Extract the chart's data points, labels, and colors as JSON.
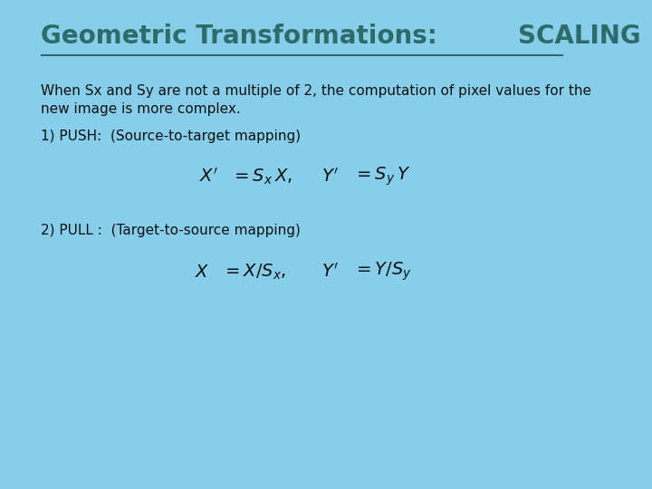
{
  "bg_color": "#87CEEB",
  "title_part1": "Geometric Transformations: ",
  "title_part2": "SCALING",
  "title_color": "#2E6B6B",
  "title_fontsize": 20,
  "body_color": "#111111",
  "body_fontsize": 11,
  "line1": "When Sx and Sy are not a multiple of 2, the computation of pixel values for the",
  "line2": "new image is more complex.",
  "push_label": "1) PUSH:  (Source-to-target mapping)",
  "pull_label": "2) PULL :  (Target-to-source mapping)"
}
